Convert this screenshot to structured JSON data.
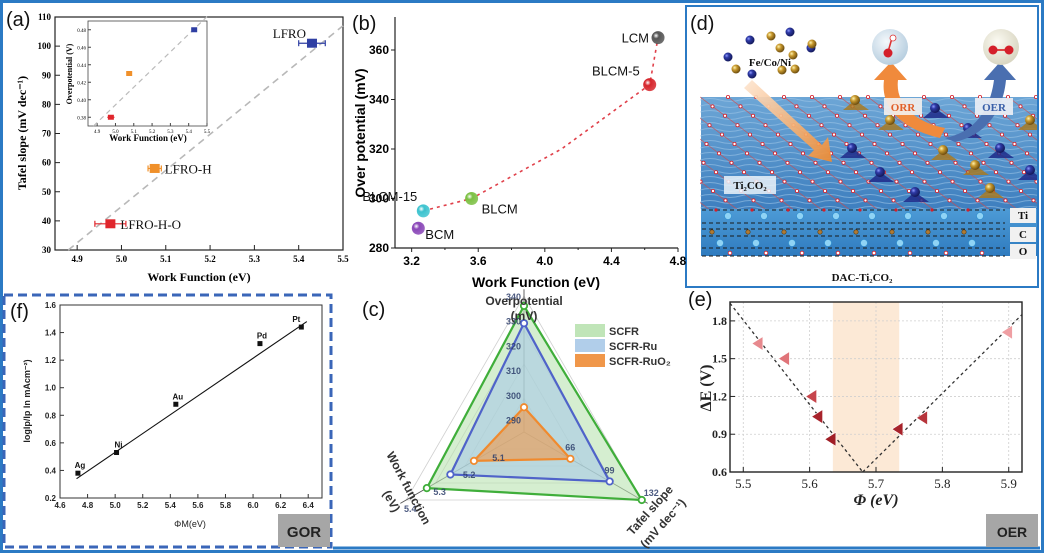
{
  "figure": {
    "frame_color": "#2b7ac4",
    "panel_labels": {
      "a": "(a)",
      "b": "(b)",
      "c": "(c)",
      "d": "(d)",
      "e": "(e)",
      "f": "(f)"
    },
    "badges": {
      "gor": "GOR",
      "oer": "OER"
    }
  },
  "chart_data": [
    {
      "id": "a",
      "type": "scatter",
      "title": "",
      "xlabel": "Work Function (eV)",
      "ylabel": "Tafel slope (mV dec⁻¹)",
      "xlim": [
        4.85,
        5.5
      ],
      "ylim": [
        30,
        110
      ],
      "xticks": [
        "4.9",
        "5.0",
        "5.1",
        "5.2",
        "5.3",
        "5.4",
        "5.5"
      ],
      "yticks": [
        "30",
        "40",
        "50",
        "60",
        "70",
        "80",
        "90",
        "100",
        "110"
      ],
      "points": [
        {
          "label": "LFRO",
          "x": 5.43,
          "y": 101,
          "xerr": 0.03,
          "color": "#2f3fa3"
        },
        {
          "label": "LFRO-H",
          "x": 5.075,
          "y": 58,
          "xerr": 0.015,
          "color": "#f0902a"
        },
        {
          "label": "LFRO-H-O",
          "x": 4.975,
          "y": 39,
          "xerr": 0.035,
          "color": "#e0262c"
        }
      ],
      "trend_line": {
        "x": [
          4.88,
          5.5
        ],
        "y": [
          30,
          107
        ],
        "style": "dashed",
        "color": "#b8b8b8"
      },
      "inset": {
        "xlabel": "Work Function (eV)",
        "ylabel": "Overpotential (V)",
        "xlim": [
          4.85,
          5.5
        ],
        "ylim": [
          0.37,
          0.49
        ],
        "xticks": [
          "4.9",
          "5.0",
          "5.1",
          "5.2",
          "5.3",
          "5.4",
          "5.5"
        ],
        "yticks": [
          "0.38",
          "0.40",
          "0.42",
          "0.44",
          "0.46",
          "0.48"
        ],
        "points": [
          {
            "x": 5.43,
            "y": 0.48,
            "xerr": 0.015,
            "color": "#2f3fa3"
          },
          {
            "x": 5.075,
            "y": 0.43,
            "xerr": 0.01,
            "color": "#f0902a"
          },
          {
            "x": 4.975,
            "y": 0.38,
            "xerr": 0.02,
            "color": "#e0262c"
          }
        ]
      }
    },
    {
      "id": "b",
      "type": "scatter",
      "xlabel": "Work Function (eV)",
      "ylabel": "Over potential (mV)",
      "xlim": [
        3.1,
        4.8
      ],
      "ylim": [
        280,
        375
      ],
      "xticks": [
        "3.2",
        "3.6",
        "4.0",
        "4.4",
        "4.8"
      ],
      "yticks": [
        "280",
        "300",
        "320",
        "340",
        "360"
      ],
      "points": [
        {
          "label": "LCM",
          "x": 4.68,
          "y": 365,
          "color": "#555555"
        },
        {
          "label": "BLCM-5",
          "x": 4.63,
          "y": 346,
          "color": "#d6262c"
        },
        {
          "label": "BLCM",
          "x": 3.56,
          "y": 300,
          "color": "#7cc043"
        },
        {
          "label": "BLCM-15",
          "x": 3.27,
          "y": 295,
          "color": "#3cc3cf"
        },
        {
          "label": "BCM",
          "x": 3.24,
          "y": 288,
          "color": "#8a47b8"
        }
      ],
      "trend_path": [
        [
          3.27,
          295
        ],
        [
          3.56,
          300
        ],
        [
          4.1,
          320
        ],
        [
          4.63,
          346
        ],
        [
          4.68,
          365
        ]
      ]
    },
    {
      "id": "c",
      "type": "radar",
      "axes": [
        {
          "label": "Overpotential",
          "unit": "(mV)",
          "ticks": [
            "290",
            "300",
            "310",
            "320",
            "330",
            "340"
          ],
          "range": [
            285,
            340
          ]
        },
        {
          "label": "Tafel slope",
          "unit": "(mV dec⁻¹)",
          "ticks": [
            "66",
            "99",
            "132"
          ],
          "range": [
            33,
            132
          ]
        },
        {
          "label": "Work function",
          "unit": "(eV)",
          "ticks": [
            "5.1",
            "5.2",
            "5.3",
            "5.4"
          ],
          "range": [
            5.0,
            5.4
          ]
        }
      ],
      "series": [
        {
          "name": "SCFR",
          "values": [
            336,
            132,
            5.33
          ],
          "fill": "#b9e2b0",
          "stroke": "#3fae3a"
        },
        {
          "name": "SCFR-Ru",
          "values": [
            329,
            105,
            5.25
          ],
          "fill": "#a9c9e8",
          "stroke": "#4f63c9"
        },
        {
          "name": "SCFR-RuO₂",
          "values": [
            295,
            72,
            5.17
          ],
          "fill": "#f0974a",
          "stroke": "#f08a2e"
        }
      ],
      "legend": "top-right"
    },
    {
      "id": "e",
      "type": "scatter",
      "xlabel": "Φ (eV)",
      "ylabel": "ΔE (V)",
      "xlim": [
        5.48,
        5.92
      ],
      "ylim": [
        0.6,
        1.95
      ],
      "xticks": [
        "5.5",
        "5.6",
        "5.7",
        "5.8",
        "5.9"
      ],
      "yticks": [
        "0.6",
        "0.9",
        "1.2",
        "1.5",
        "1.8"
      ],
      "grid": true,
      "highlight_band": [
        5.635,
        5.735
      ],
      "points": [
        {
          "x": 5.522,
          "y": 1.62,
          "color": "#e7898e"
        },
        {
          "x": 5.562,
          "y": 1.5,
          "color": "#e07479"
        },
        {
          "x": 5.603,
          "y": 1.2,
          "color": "#c7454c"
        },
        {
          "x": 5.612,
          "y": 1.04,
          "color": "#a8232b"
        },
        {
          "x": 5.632,
          "y": 0.86,
          "color": "#a01e26"
        },
        {
          "x": 5.733,
          "y": 0.94,
          "color": "#a8232b"
        },
        {
          "x": 5.77,
          "y": 1.03,
          "color": "#b7353c"
        },
        {
          "x": 5.898,
          "y": 1.71,
          "color": "#ef9fa3"
        }
      ],
      "volcano_lines": [
        {
          "x": [
            5.48,
            5.68
          ],
          "y": [
            1.94,
            0.6
          ]
        },
        {
          "x": [
            5.68,
            5.92
          ],
          "y": [
            0.6,
            1.85
          ]
        }
      ]
    },
    {
      "id": "f",
      "type": "scatter",
      "xlabel": "ΦM(eV)",
      "ylabel": "logIp/Ip In mAcm⁻²)",
      "xlim": [
        4.6,
        6.5
      ],
      "ylim": [
        0.2,
        1.6
      ],
      "xticks": [
        "4.6",
        "4.8",
        "5.0",
        "5.2",
        "5.4",
        "5.6",
        "5.8",
        "6.0",
        "6.2",
        "6.4"
      ],
      "yticks": [
        "0.2",
        "0.4",
        "0.6",
        "0.8",
        "1.0",
        "1.2",
        "1.4",
        "1.6"
      ],
      "points": [
        {
          "label": "Ag",
          "x": 4.73,
          "y": 0.38
        },
        {
          "label": "Ni",
          "x": 5.01,
          "y": 0.53
        },
        {
          "label": "Au",
          "x": 5.44,
          "y": 0.88
        },
        {
          "label": "Pd",
          "x": 6.05,
          "y": 1.32
        },
        {
          "label": "Pt",
          "x": 6.35,
          "y": 1.44
        }
      ],
      "fit_line": {
        "x": [
          4.72,
          6.39
        ],
        "y": [
          0.34,
          1.48
        ]
      }
    }
  ],
  "illustration_d": {
    "metal_label": "Fe/Co/Ni",
    "substrate_label": "Ti₂CO₂",
    "caption": "DAC-Ti₂CO₂",
    "reaction_labels": {
      "orr": "ORR",
      "oer": "OER"
    },
    "layer_labels": [
      "Ti",
      "C",
      "O"
    ]
  }
}
